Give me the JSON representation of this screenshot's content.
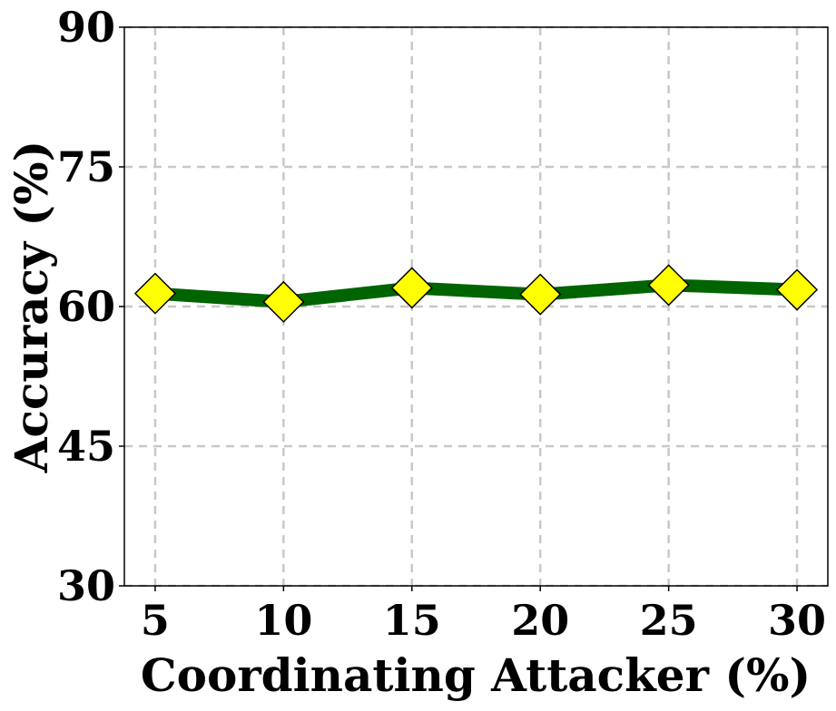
{
  "chart_data": {
    "type": "line",
    "xlabel": "Coordinating Attacker (%)",
    "ylabel": "Accuracy (%)",
    "x": [
      5,
      10,
      15,
      20,
      25,
      30
    ],
    "x_ticks": [
      "5",
      "10",
      "15",
      "20",
      "25",
      "30"
    ],
    "y_ticks": [
      "30",
      "45",
      "60",
      "75",
      "90"
    ],
    "ylim": [
      30,
      90
    ],
    "xlim": [
      3.8,
      31.2
    ],
    "grid": true,
    "series": [
      {
        "values": [
          61.4,
          60.5,
          62.0,
          61.3,
          62.3,
          61.8
        ],
        "line_color": "#006400",
        "marker": "diamond",
        "marker_color": "#ffff00"
      }
    ]
  }
}
